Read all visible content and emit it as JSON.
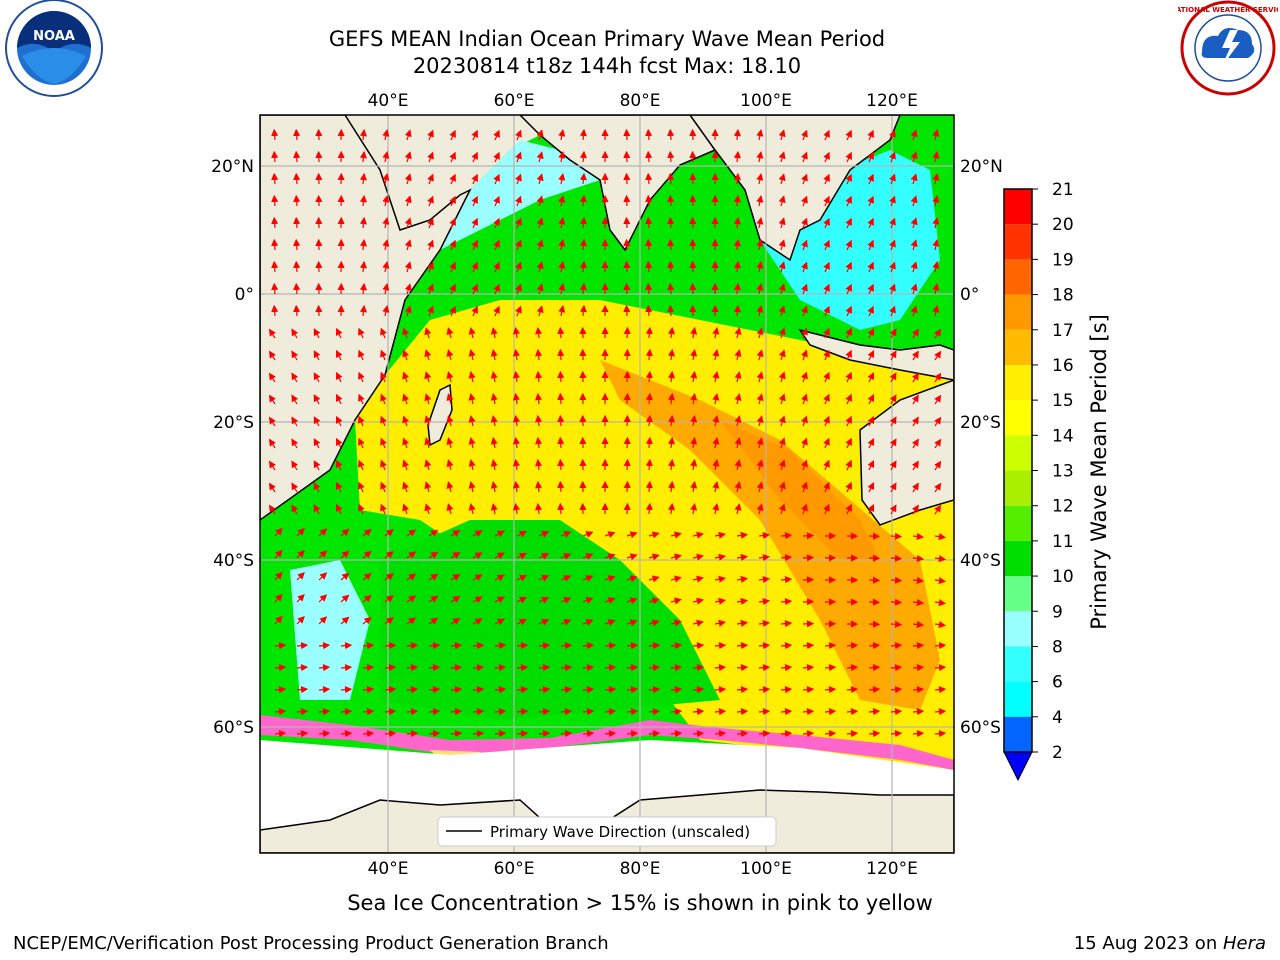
{
  "title": {
    "line1": "GEFS MEAN Indian Ocean Primary Wave Mean Period",
    "line2": "20230814 t18z 144h fcst   Max: 18.10"
  },
  "map": {
    "lon_ticks": [
      "40°E",
      "60°E",
      "80°E",
      "100°E",
      "120°E"
    ],
    "lat_ticks_left": [
      "20°N",
      "0°",
      "20°S",
      "40°S",
      "60°S"
    ],
    "lat_ticks_right": [
      "20°N",
      "0°",
      "20°S",
      "40°S",
      "60°S"
    ],
    "legend_label": "Primary Wave Direction (unscaled)",
    "colors": {
      "land": "#efecdc",
      "ocean_green": "#00e600",
      "ocean_yellow": "#ffee00",
      "ocean_orange": "#ff9900",
      "arrow": "#ff0000",
      "ice_pink": "#ff66cc"
    }
  },
  "colorbar": {
    "label": "Primary Wave Mean Period [s]",
    "tick_labels": [
      "2",
      "4",
      "6",
      "8",
      "9",
      "10",
      "11",
      "12",
      "13",
      "14",
      "15",
      "16",
      "17",
      "18",
      "19",
      "20",
      "21"
    ],
    "colors": [
      "#0066ff",
      "#00ccff",
      "#00ffff",
      "#33ffff",
      "#99ffff",
      "#66ff88",
      "#00dd00",
      "#55ee00",
      "#aaee00",
      "#ccff00",
      "#ffff00",
      "#ffee00",
      "#ffbb00",
      "#ff9900",
      "#ff6600",
      "#ff3300",
      "#ff0000"
    ],
    "under_color": "#0000ff"
  },
  "caption": "Sea Ice Concentration > 15% is shown in pink to yellow",
  "credit_left": "NCEP/EMC/Verification Post Processing Product Generation Branch",
  "credit_right_date": "15 Aug 2023 on ",
  "credit_right_host": "Hera",
  "logos": {
    "noaa_text": "NOAA",
    "nws_text": "NATIONAL WEATHER SERVICE"
  }
}
